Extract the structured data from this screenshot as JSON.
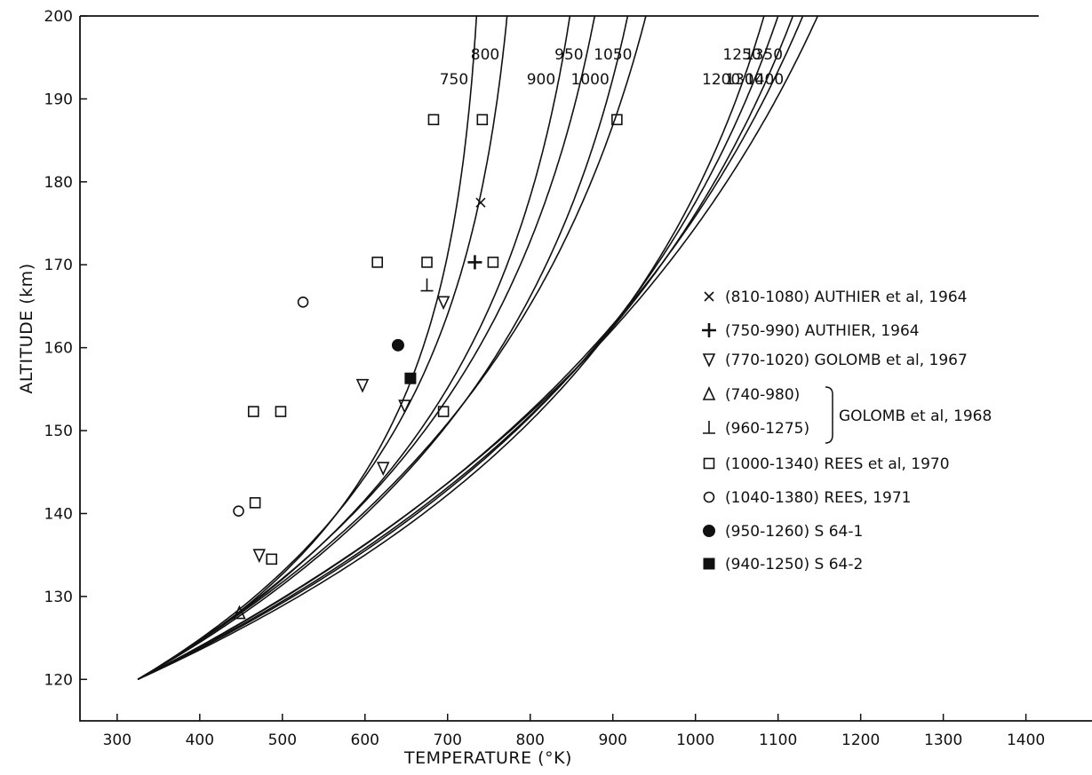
{
  "chart_data": {
    "type": "scatter",
    "xlabel": "TEMPERATURE (°K)",
    "ylabel": "ALTITUDE (km)",
    "xlim": [
      255,
      1480
    ],
    "ylim": [
      115,
      200
    ],
    "x_ticks": [
      300,
      400,
      500,
      600,
      700,
      800,
      900,
      1000,
      1100,
      1200,
      1300,
      1400
    ],
    "y_ticks": [
      120,
      130,
      140,
      150,
      160,
      170,
      180,
      190,
      200
    ],
    "grid": false,
    "legend_position": "right",
    "model_curves": {
      "base_point": {
        "x": 325,
        "y": 120
      },
      "curves": [
        {
          "label": "750",
          "top_x": 735
        },
        {
          "label": "800",
          "top_x": 772
        },
        {
          "label": "900",
          "top_x": 848
        },
        {
          "label": "950",
          "top_x": 878
        },
        {
          "label": "1000",
          "top_x": 918
        },
        {
          "label": "1050",
          "top_x": 940
        },
        {
          "label": "1200",
          "top_x": 1083
        },
        {
          "label": "1250",
          "top_x": 1100
        },
        {
          "label": "1300",
          "top_x": 1118
        },
        {
          "label": "1350",
          "top_x": 1130
        },
        {
          "label": "1400",
          "top_x": 1148
        }
      ]
    },
    "series": [
      {
        "name": "(810-1080) AUTHIER et al, 1964",
        "marker": "x",
        "points": [
          [
            740,
            177.5
          ]
        ]
      },
      {
        "name": "(750-990) AUTHIER, 1964",
        "marker": "plus",
        "points": [
          [
            733,
            170.3
          ]
        ]
      },
      {
        "name": "(770-1020) GOLOMB et al, 1967",
        "marker": "triangle-down",
        "points": [
          [
            695,
            165.5
          ],
          [
            597,
            155.5
          ],
          [
            648,
            153
          ],
          [
            622,
            145.5
          ],
          [
            472,
            135
          ]
        ]
      },
      {
        "name": "(740-980)",
        "marker": "triangle-up",
        "points": [
          [
            448,
            128
          ]
        ]
      },
      {
        "name": "(960-1275)",
        "marker": "up-tack",
        "points": [
          [
            675,
            167.5
          ]
        ]
      },
      {
        "name": "(1000-1340) REES et al, 1970",
        "marker": "square",
        "points": [
          [
            683,
            187.5
          ],
          [
            742,
            187.5
          ],
          [
            905,
            187.5
          ],
          [
            615,
            170.3
          ],
          [
            675,
            170.3
          ],
          [
            755,
            170.3
          ],
          [
            465,
            152.3
          ],
          [
            498,
            152.3
          ],
          [
            695,
            152.3
          ],
          [
            467,
            141.3
          ],
          [
            487,
            134.5
          ]
        ]
      },
      {
        "name": "(1040-1380) REES, 1971",
        "marker": "circle",
        "points": [
          [
            525,
            165.5
          ],
          [
            447,
            140.3
          ]
        ]
      },
      {
        "name": "(950-1260) S 64-1",
        "marker": "filled-circle",
        "points": [
          [
            640,
            160.3
          ]
        ]
      },
      {
        "name": "(940-1250) S 64-2",
        "marker": "filled-square",
        "points": [
          [
            655,
            156.3
          ]
        ]
      }
    ],
    "legend": {
      "entries": [
        {
          "marker": "x",
          "text": "(810-1080) AUTHIER  et al, 1964"
        },
        {
          "marker": "plus",
          "text": "(750-990) AUTHIER, 1964"
        },
        {
          "marker": "triangle-down",
          "text": "(770-1020) GOLOMB  et al, 1967"
        },
        {
          "marker": "triangle-up",
          "text": "(740-980)"
        },
        {
          "marker": "up-tack",
          "text": "(960-1275)"
        },
        {
          "marker": "square",
          "text": "(1000-1340) REES  et al, 1970"
        },
        {
          "marker": "circle",
          "text": "(1040-1380) REES, 1971"
        },
        {
          "marker": "filled-circle",
          "text": "(950-1260) S 64-1"
        },
        {
          "marker": "filled-square",
          "text": "(940-1250) S 64-2"
        }
      ],
      "group_label": "GOLOMB  et al, 1968"
    }
  }
}
